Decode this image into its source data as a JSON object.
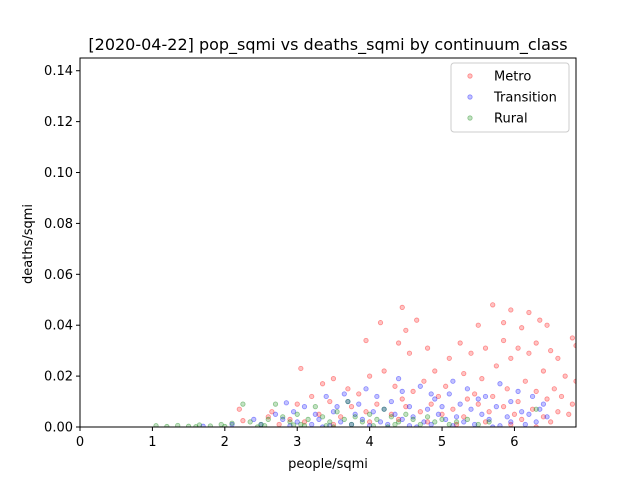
{
  "chart_data": {
    "type": "scatter",
    "title": "[2020-04-22] pop_sqmi vs deaths_sqmi by continuum_class",
    "xlabel": "people/sqmi",
    "ylabel": "deaths/sqmi",
    "xlim": [
      0,
      6.85
    ],
    "ylim": [
      0,
      0.145
    ],
    "xticks": [
      0,
      1,
      2,
      3,
      4,
      5,
      6
    ],
    "yticks": [
      0.0,
      0.02,
      0.04,
      0.06,
      0.08,
      0.1,
      0.12,
      0.14
    ],
    "ytick_labels": [
      "0.00",
      "0.02",
      "0.04",
      "0.06",
      "0.08",
      "0.10",
      "0.12",
      "0.14"
    ],
    "grid": false,
    "legend_position": "top-right",
    "marker_opacity": 0.4,
    "series": [
      {
        "name": "Metro",
        "color": "#ff0000",
        "points": [
          [
            4.45,
            0.047
          ],
          [
            5.7,
            0.048
          ],
          [
            5.95,
            0.046
          ],
          [
            6.2,
            0.045
          ],
          [
            4.15,
            0.041
          ],
          [
            4.5,
            0.038
          ],
          [
            5.85,
            0.041
          ],
          [
            6.35,
            0.042
          ],
          [
            4.65,
            0.042
          ],
          [
            5.5,
            0.04
          ],
          [
            6.1,
            0.039
          ],
          [
            6.45,
            0.04
          ],
          [
            6.8,
            0.035
          ],
          [
            4.4,
            0.033
          ],
          [
            5.25,
            0.033
          ],
          [
            5.6,
            0.031
          ],
          [
            6.3,
            0.033
          ],
          [
            3.95,
            0.034
          ],
          [
            4.8,
            0.031
          ],
          [
            5.1,
            0.027
          ],
          [
            5.4,
            0.029
          ],
          [
            5.85,
            0.034
          ],
          [
            6.05,
            0.031
          ],
          [
            6.5,
            0.03
          ],
          [
            6.85,
            0.032
          ],
          [
            4.55,
            0.029
          ],
          [
            5.95,
            0.027
          ],
          [
            6.2,
            0.029
          ],
          [
            5.75,
            0.024
          ],
          [
            6.6,
            0.027
          ],
          [
            3.05,
            0.023
          ],
          [
            4.2,
            0.022
          ],
          [
            4.9,
            0.022
          ],
          [
            5.3,
            0.021
          ],
          [
            6.4,
            0.022
          ],
          [
            6.7,
            0.02
          ],
          [
            3.5,
            0.019
          ],
          [
            4.0,
            0.02
          ],
          [
            4.75,
            0.018
          ],
          [
            5.55,
            0.019
          ],
          [
            6.15,
            0.018
          ],
          [
            6.55,
            0.015
          ],
          [
            6.85,
            0.018
          ],
          [
            3.35,
            0.017
          ],
          [
            3.7,
            0.015
          ],
          [
            4.35,
            0.016
          ],
          [
            4.6,
            0.014
          ],
          [
            5.05,
            0.016
          ],
          [
            5.45,
            0.013
          ],
          [
            5.9,
            0.015
          ],
          [
            6.3,
            0.014
          ],
          [
            6.65,
            0.012
          ],
          [
            3.2,
            0.012
          ],
          [
            3.85,
            0.013
          ],
          [
            4.45,
            0.011
          ],
          [
            4.95,
            0.012
          ],
          [
            5.35,
            0.011
          ],
          [
            5.7,
            0.012
          ],
          [
            6.05,
            0.01
          ],
          [
            6.45,
            0.011
          ],
          [
            6.8,
            0.009
          ],
          [
            2.2,
            0.007
          ],
          [
            2.65,
            0.006
          ],
          [
            3.0,
            0.009
          ],
          [
            3.45,
            0.01
          ],
          [
            3.75,
            0.008
          ],
          [
            4.1,
            0.009
          ],
          [
            4.5,
            0.008
          ],
          [
            4.85,
            0.009
          ],
          [
            5.15,
            0.007
          ],
          [
            5.5,
            0.009
          ],
          [
            5.85,
            0.008
          ],
          [
            6.25,
            0.007
          ],
          [
            6.6,
            0.006
          ],
          [
            2.25,
            0.0025
          ],
          [
            2.6,
            0.004
          ],
          [
            2.9,
            0.003
          ],
          [
            3.3,
            0.005
          ],
          [
            3.6,
            0.004
          ],
          [
            3.95,
            0.006
          ],
          [
            4.3,
            0.005
          ],
          [
            4.7,
            0.006
          ],
          [
            5.0,
            0.005
          ],
          [
            5.3,
            0.004
          ],
          [
            5.65,
            0.006
          ],
          [
            6.0,
            0.005
          ],
          [
            6.4,
            0.004
          ],
          [
            6.75,
            0.005
          ],
          [
            3.1,
            0.002
          ],
          [
            3.5,
            0.001
          ],
          [
            4.0,
            0.002
          ],
          [
            4.4,
            0.003
          ],
          [
            4.8,
            0.002
          ],
          [
            5.2,
            0.001
          ],
          [
            5.6,
            0.002
          ],
          [
            6.1,
            0.003
          ],
          [
            6.5,
            0.002
          ],
          [
            2.75,
            0.001
          ],
          [
            5.95,
            0.001
          ],
          [
            6.3,
            0.0
          ]
        ]
      },
      {
        "name": "Transition",
        "color": "#0000ff",
        "points": [
          [
            2.85,
            0.0095
          ],
          [
            3.95,
            0.015
          ],
          [
            4.1,
            0.012
          ],
          [
            4.45,
            0.014
          ],
          [
            4.7,
            0.016
          ],
          [
            5.1,
            0.013
          ],
          [
            5.35,
            0.015
          ],
          [
            5.6,
            0.012
          ],
          [
            5.8,
            0.017
          ],
          [
            6.05,
            0.014
          ],
          [
            6.25,
            0.012
          ],
          [
            3.4,
            0.012
          ],
          [
            3.7,
            0.01
          ],
          [
            4.3,
            0.01
          ],
          [
            4.9,
            0.011
          ],
          [
            5.25,
            0.009
          ],
          [
            5.5,
            0.011
          ],
          [
            5.95,
            0.01
          ],
          [
            6.4,
            0.009
          ],
          [
            3.1,
            0.008
          ],
          [
            3.55,
            0.008
          ],
          [
            3.85,
            0.009
          ],
          [
            4.2,
            0.007
          ],
          [
            4.55,
            0.008
          ],
          [
            4.8,
            0.007
          ],
          [
            5.0,
            0.008
          ],
          [
            5.4,
            0.007
          ],
          [
            5.75,
            0.008
          ],
          [
            6.1,
            0.006
          ],
          [
            6.35,
            0.007
          ],
          [
            2.7,
            0.005
          ],
          [
            2.95,
            0.006
          ],
          [
            3.25,
            0.005
          ],
          [
            3.5,
            0.006
          ],
          [
            3.8,
            0.005
          ],
          [
            4.05,
            0.006
          ],
          [
            4.35,
            0.005
          ],
          [
            4.6,
            0.004
          ],
          [
            4.95,
            0.005
          ],
          [
            5.2,
            0.004
          ],
          [
            5.55,
            0.005
          ],
          [
            5.9,
            0.004
          ],
          [
            6.2,
            0.005
          ],
          [
            6.45,
            0.004
          ],
          [
            2.4,
            0.003
          ],
          [
            2.8,
            0.003
          ],
          [
            3.0,
            0.002
          ],
          [
            3.3,
            0.003
          ],
          [
            3.6,
            0.002
          ],
          [
            3.9,
            0.003
          ],
          [
            4.15,
            0.002
          ],
          [
            4.45,
            0.003
          ],
          [
            4.75,
            0.002
          ],
          [
            5.05,
            0.003
          ],
          [
            5.3,
            0.002
          ],
          [
            5.65,
            0.003
          ],
          [
            5.95,
            0.002
          ],
          [
            6.3,
            0.002
          ],
          [
            2.1,
            0.001
          ],
          [
            2.5,
            0.001
          ],
          [
            2.9,
            0.0005
          ],
          [
            3.2,
            0.001
          ],
          [
            3.45,
            0.0005
          ],
          [
            3.75,
            0.001
          ],
          [
            4.0,
            0.0005
          ],
          [
            4.25,
            0.001
          ],
          [
            4.55,
            0.0005
          ],
          [
            4.85,
            0.001
          ],
          [
            5.15,
            0.0005
          ],
          [
            5.45,
            0.001
          ],
          [
            5.8,
            0.0005
          ],
          [
            6.15,
            0.001
          ],
          [
            1.7,
            0.0003
          ],
          [
            3.35,
            0.0
          ],
          [
            4.65,
            0.0
          ],
          [
            5.7,
            0.0
          ],
          [
            4.4,
            0.019
          ],
          [
            5.15,
            0.018
          ],
          [
            4.85,
            0.013
          ],
          [
            3.65,
            0.013
          ]
        ]
      },
      {
        "name": "Rural",
        "color": "#008000",
        "points": [
          [
            1.05,
            0.0005
          ],
          [
            1.2,
            0.0002
          ],
          [
            1.35,
            0.0006
          ],
          [
            1.5,
            0.0003
          ],
          [
            1.65,
            0.0008
          ],
          [
            1.8,
            0.0004
          ],
          [
            1.95,
            0.001
          ],
          [
            2.1,
            0.0015
          ],
          [
            2.25,
            0.009
          ],
          [
            2.35,
            0.002
          ],
          [
            2.5,
            0.001
          ],
          [
            2.6,
            0.003
          ],
          [
            2.7,
            0.009
          ],
          [
            2.8,
            0.004
          ],
          [
            2.9,
            0.002
          ],
          [
            3.0,
            0.005
          ],
          [
            3.05,
            0.001
          ],
          [
            3.15,
            0.003
          ],
          [
            3.25,
            0.008
          ],
          [
            3.35,
            0.004
          ],
          [
            3.45,
            0.002
          ],
          [
            3.55,
            0.006
          ],
          [
            3.65,
            0.003
          ],
          [
            3.7,
            0.01
          ],
          [
            3.8,
            0.004
          ],
          [
            3.9,
            0.002
          ],
          [
            4.0,
            0.005
          ],
          [
            4.1,
            0.003
          ],
          [
            4.2,
            0.007
          ],
          [
            4.3,
            0.004
          ],
          [
            4.4,
            0.002
          ],
          [
            4.5,
            0.005
          ],
          [
            4.6,
            0.003
          ],
          [
            4.7,
            0.001
          ],
          [
            4.8,
            0.004
          ],
          [
            4.9,
            0.002
          ],
          [
            5.0,
            0.003
          ],
          [
            5.1,
            0.001
          ],
          [
            5.2,
            0.002
          ],
          [
            5.35,
            0.003
          ],
          [
            5.5,
            0.001
          ],
          [
            5.65,
            0.002
          ],
          [
            6.3,
            0.007
          ],
          [
            3.1,
            0.0005
          ],
          [
            3.4,
            0.0005
          ],
          [
            3.75,
            0.001
          ],
          [
            4.05,
            0.0005
          ],
          [
            4.35,
            0.001
          ],
          [
            2.55,
            0.0005
          ],
          [
            2.95,
            0.0008
          ],
          [
            1.6,
            0.0001
          ],
          [
            2.0,
            0.0002
          ],
          [
            3.5,
            0.0
          ],
          [
            4.25,
            0.0
          ],
          [
            2.45,
            0.0
          ]
        ]
      }
    ]
  }
}
